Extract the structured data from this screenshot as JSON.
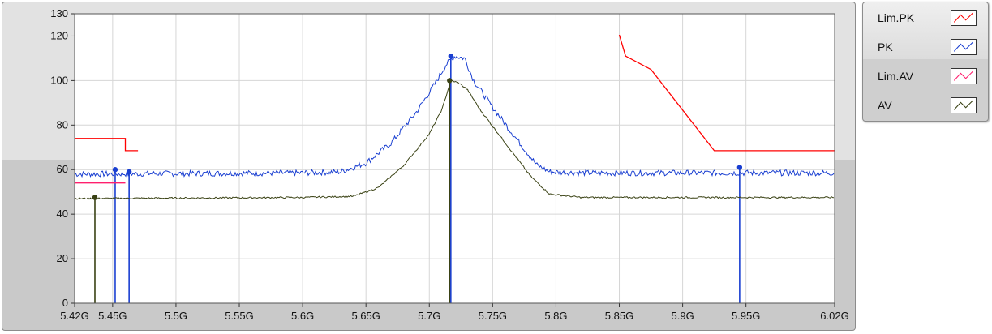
{
  "chart_data": {
    "type": "line",
    "title": "",
    "xlabel": "",
    "ylabel": "",
    "xlim": [
      5.42,
      6.02
    ],
    "ylim": [
      0,
      130
    ],
    "x_ticks": [
      {
        "value": 5.42,
        "label": "5.42G"
      },
      {
        "value": 5.45,
        "label": "5.45G"
      },
      {
        "value": 5.5,
        "label": "5.5G"
      },
      {
        "value": 5.55,
        "label": "5.55G"
      },
      {
        "value": 5.6,
        "label": "5.6G"
      },
      {
        "value": 5.65,
        "label": "5.65G"
      },
      {
        "value": 5.7,
        "label": "5.7G"
      },
      {
        "value": 5.75,
        "label": "5.75G"
      },
      {
        "value": 5.8,
        "label": "5.8G"
      },
      {
        "value": 5.85,
        "label": "5.85G"
      },
      {
        "value": 5.9,
        "label": "5.9G"
      },
      {
        "value": 5.95,
        "label": "5.95G"
      },
      {
        "value": 6.02,
        "label": "6.02G"
      }
    ],
    "y_ticks": [
      {
        "value": 0,
        "label": "0"
      },
      {
        "value": 20,
        "label": "20"
      },
      {
        "value": 40,
        "label": "40"
      },
      {
        "value": 60,
        "label": "60"
      },
      {
        "value": 80,
        "label": "80"
      },
      {
        "value": 100,
        "label": "100"
      },
      {
        "value": 120,
        "label": "120"
      },
      {
        "value": 130,
        "label": "130"
      }
    ],
    "grid": true,
    "legend_position": "right",
    "series": [
      {
        "name": "Lim.PK",
        "color": "#ff0000",
        "segments": [
          [
            [
              5.42,
              74
            ],
            [
              5.46,
              74
            ],
            [
              5.46,
              68.5
            ],
            [
              5.47,
              68.5
            ]
          ],
          [
            [
              5.85,
              120.5
            ],
            [
              5.855,
              111
            ],
            [
              5.875,
              105
            ],
            [
              5.925,
              68.5
            ],
            [
              6.02,
              68.5
            ]
          ]
        ]
      },
      {
        "name": "PK",
        "color": "#1a3fd1",
        "points": [
          [
            5.42,
            58
          ],
          [
            5.6,
            58.5
          ],
          [
            5.63,
            59
          ],
          [
            5.65,
            63
          ],
          [
            5.67,
            72
          ],
          [
            5.69,
            86
          ],
          [
            5.705,
            99
          ],
          [
            5.713,
            107
          ],
          [
            5.72,
            111
          ],
          [
            5.728,
            110
          ],
          [
            5.735,
            100
          ],
          [
            5.75,
            88
          ],
          [
            5.77,
            73
          ],
          [
            5.785,
            62
          ],
          [
            5.795,
            59
          ],
          [
            5.82,
            58.5
          ],
          [
            6.02,
            58.5
          ]
        ],
        "markers": [
          [
            5.452,
            60
          ],
          [
            5.463,
            59
          ],
          [
            5.717,
            111
          ],
          [
            5.945,
            61
          ]
        ]
      },
      {
        "name": "Lim.AV",
        "color": "#ff1f6e",
        "segments": [
          [
            [
              5.42,
              54
            ],
            [
              5.46,
              54
            ]
          ]
        ]
      },
      {
        "name": "AV",
        "color": "#3a4214",
        "points": [
          [
            5.42,
            47
          ],
          [
            5.6,
            47.5
          ],
          [
            5.64,
            48
          ],
          [
            5.66,
            52
          ],
          [
            5.68,
            62
          ],
          [
            5.7,
            76
          ],
          [
            5.71,
            87
          ],
          [
            5.717,
            100
          ],
          [
            5.723,
            99
          ],
          [
            5.73,
            96
          ],
          [
            5.74,
            87
          ],
          [
            5.76,
            72
          ],
          [
            5.78,
            57
          ],
          [
            5.795,
            49
          ],
          [
            5.82,
            47.5
          ],
          [
            6.02,
            47.5
          ]
        ],
        "markers": [
          [
            5.436,
            47.5
          ],
          [
            5.716,
            100
          ]
        ]
      }
    ]
  },
  "legend": {
    "items": [
      {
        "label": "Lim.PK",
        "color": "#ff0000"
      },
      {
        "label": "PK",
        "color": "#1a3fd1"
      },
      {
        "label": "Lim.AV",
        "color": "#ff1f6e"
      },
      {
        "label": "AV",
        "color": "#3a4214"
      }
    ]
  }
}
